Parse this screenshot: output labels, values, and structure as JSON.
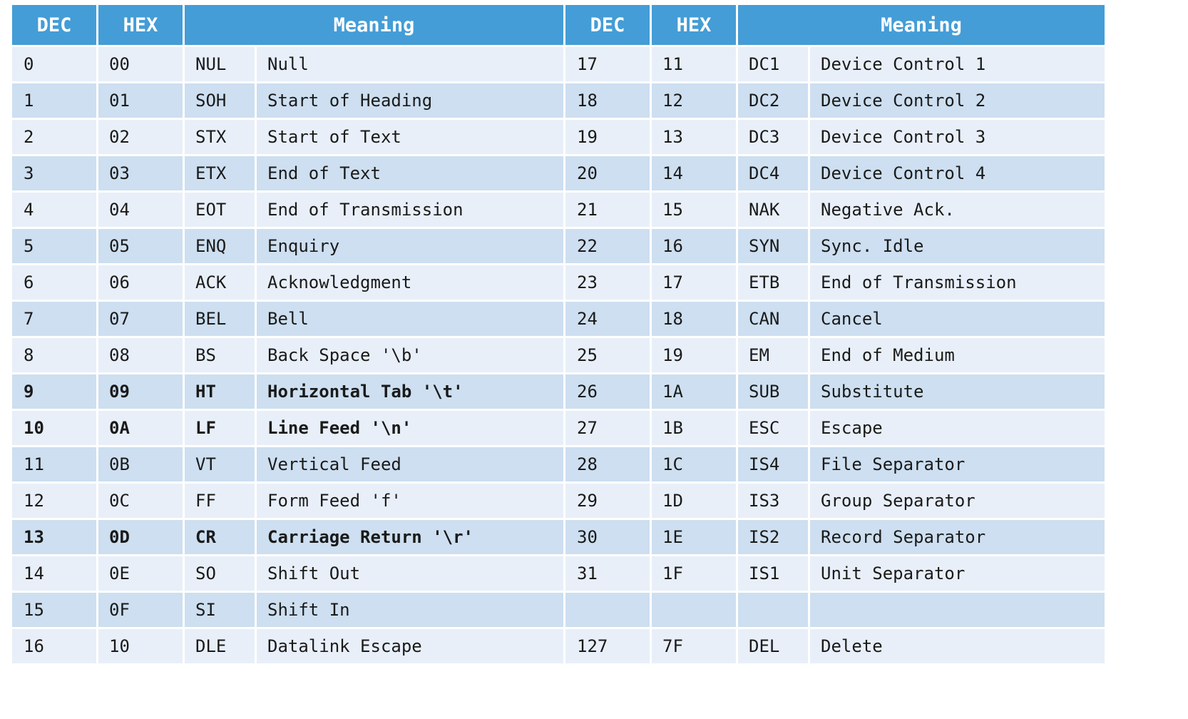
{
  "headers": [
    "DEC",
    "HEX",
    "Meaning",
    "DEC",
    "HEX",
    "Meaning"
  ],
  "rows": [
    {
      "left": {
        "dec": "0",
        "hex": "00",
        "code": "NUL",
        "meaning": "Null"
      },
      "right": {
        "dec": "17",
        "hex": "11",
        "code": "DC1",
        "meaning": "Device Control 1"
      }
    },
    {
      "left": {
        "dec": "1",
        "hex": "01",
        "code": "SOH",
        "meaning": "Start of Heading"
      },
      "right": {
        "dec": "18",
        "hex": "12",
        "code": "DC2",
        "meaning": "Device Control 2"
      }
    },
    {
      "left": {
        "dec": "2",
        "hex": "02",
        "code": "STX",
        "meaning": "Start of Text"
      },
      "right": {
        "dec": "19",
        "hex": "13",
        "code": "DC3",
        "meaning": "Device Control 3"
      }
    },
    {
      "left": {
        "dec": "3",
        "hex": "03",
        "code": "ETX",
        "meaning": "End of Text"
      },
      "right": {
        "dec": "20",
        "hex": "14",
        "code": "DC4",
        "meaning": "Device Control 4"
      }
    },
    {
      "left": {
        "dec": "4",
        "hex": "04",
        "code": "EOT",
        "meaning": "End of Transmission"
      },
      "right": {
        "dec": "21",
        "hex": "15",
        "code": "NAK",
        "meaning": "Negative Ack."
      }
    },
    {
      "left": {
        "dec": "5",
        "hex": "05",
        "code": "ENQ",
        "meaning": "Enquiry"
      },
      "right": {
        "dec": "22",
        "hex": "16",
        "code": "SYN",
        "meaning": "Sync. Idle"
      }
    },
    {
      "left": {
        "dec": "6",
        "hex": "06",
        "code": "ACK",
        "meaning": "Acknowledgment"
      },
      "right": {
        "dec": "23",
        "hex": "17",
        "code": "ETB",
        "meaning": "End of Transmission"
      }
    },
    {
      "left": {
        "dec": "7",
        "hex": "07",
        "code": "BEL",
        "meaning": "Bell"
      },
      "right": {
        "dec": "24",
        "hex": "18",
        "code": "CAN",
        "meaning": "Cancel"
      }
    },
    {
      "left": {
        "dec": "8",
        "hex": "08",
        "code": "BS",
        "meaning": "Back Space '\\b'"
      },
      "right": {
        "dec": "25",
        "hex": "19",
        "code": "EM",
        "meaning": "End of Medium"
      }
    },
    {
      "left": {
        "dec": "9",
        "hex": "09",
        "code": "HT",
        "meaning": "Horizontal Tab '\\t'"
      },
      "right": {
        "dec": "26",
        "hex": "1A",
        "code": "SUB",
        "meaning": "Substitute"
      },
      "bold_left": true
    },
    {
      "left": {
        "dec": "10",
        "hex": "0A",
        "code": "LF",
        "meaning": "Line Feed '\\n'"
      },
      "right": {
        "dec": "27",
        "hex": "1B",
        "code": "ESC",
        "meaning": "Escape"
      },
      "bold_left": true
    },
    {
      "left": {
        "dec": "11",
        "hex": "0B",
        "code": "VT",
        "meaning": "Vertical Feed"
      },
      "right": {
        "dec": "28",
        "hex": "1C",
        "code": "IS4",
        "meaning": "File Separator"
      }
    },
    {
      "left": {
        "dec": "12",
        "hex": "0C",
        "code": "FF",
        "meaning": "Form Feed 'f'"
      },
      "right": {
        "dec": "29",
        "hex": "1D",
        "code": "IS3",
        "meaning": "Group Separator"
      }
    },
    {
      "left": {
        "dec": "13",
        "hex": "0D",
        "code": "CR",
        "meaning": "Carriage Return '\\r'"
      },
      "right": {
        "dec": "30",
        "hex": "1E",
        "code": "IS2",
        "meaning": "Record Separator"
      },
      "bold_left": true
    },
    {
      "left": {
        "dec": "14",
        "hex": "0E",
        "code": "SO",
        "meaning": "Shift Out"
      },
      "right": {
        "dec": "31",
        "hex": "1F",
        "code": "IS1",
        "meaning": "Unit Separator"
      }
    },
    {
      "left": {
        "dec": "15",
        "hex": "0F",
        "code": "SI",
        "meaning": "Shift In"
      },
      "right": {
        "dec": "",
        "hex": "",
        "code": "",
        "meaning": ""
      }
    },
    {
      "left": {
        "dec": "16",
        "hex": "10",
        "code": "DLE",
        "meaning": "Datalink Escape"
      },
      "right": {
        "dec": "127",
        "hex": "7F",
        "code": "DEL",
        "meaning": "Delete"
      }
    }
  ],
  "colors": {
    "header_bg": "#449dd6",
    "header_text": "#ffffff",
    "row_light": "#e8eff8",
    "row_dark": "#cddff0",
    "cell_text": "#1a1a1a"
  }
}
